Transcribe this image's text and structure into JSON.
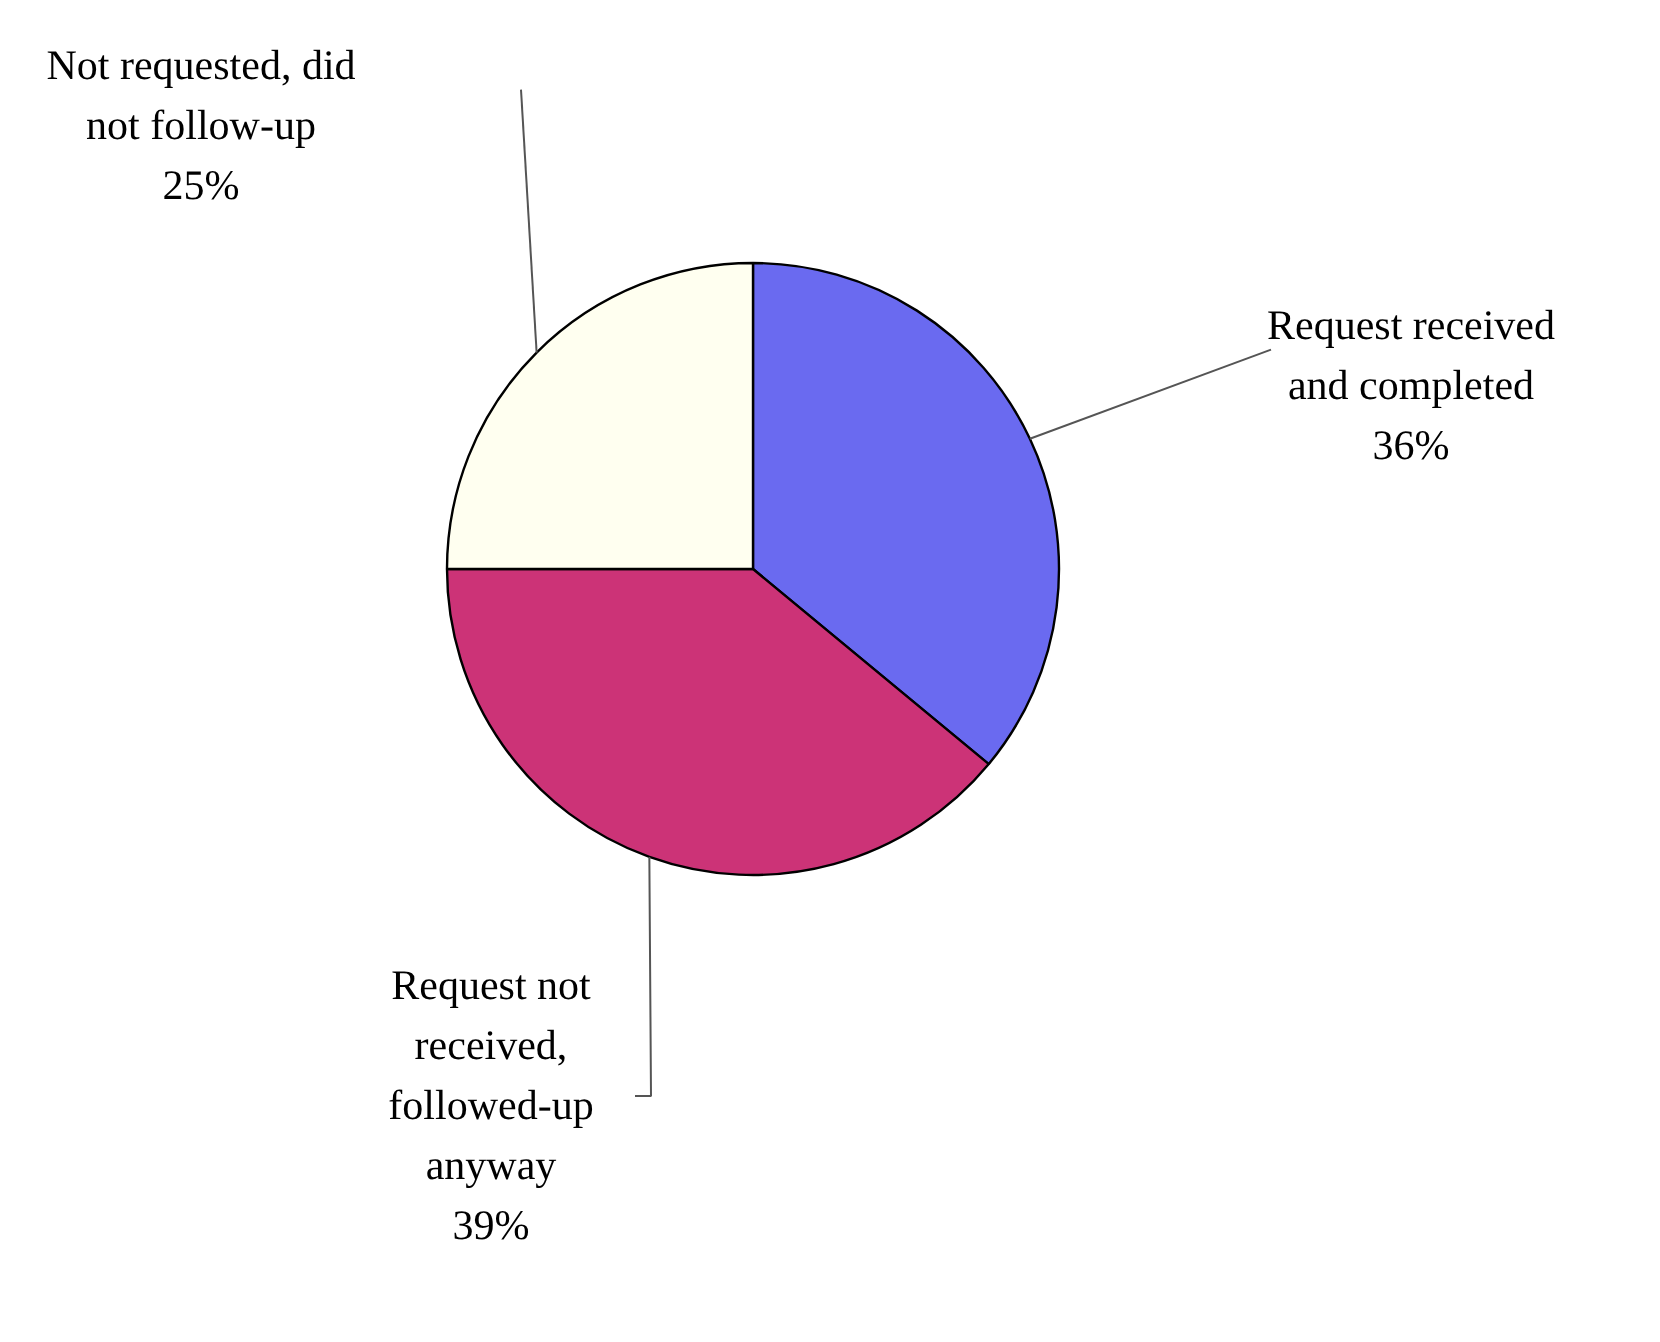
{
  "chart_data": {
    "type": "pie",
    "categories": [
      "Request received and completed",
      "Request not received, followed-up anyway",
      "Not requested, did not follow-up"
    ],
    "values": [
      36,
      39,
      25
    ],
    "value_labels": [
      "36%",
      "39%",
      "25%"
    ],
    "colors": [
      "#6a6af0",
      "#cc3377",
      "#fffff0"
    ]
  }
}
